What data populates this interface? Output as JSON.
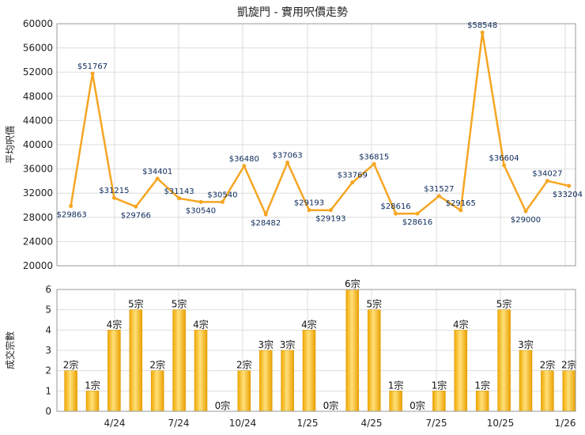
{
  "chart_data": [
    {
      "type": "line",
      "title": "凱旋門 - 實用呎價走勢",
      "ylabel": "平均呎價",
      "xlabel": "",
      "ylim": [
        20000,
        60000
      ],
      "yticks": [
        "20000",
        "24000",
        "28000",
        "32000",
        "36000",
        "40000",
        "44000",
        "48000",
        "52000",
        "56000",
        "60000"
      ],
      "grid": true,
      "line_color": "#f5a623",
      "series": [
        {
          "values": [
            29863,
            51767,
            31215,
            29766,
            34401,
            31143,
            30540,
            30540,
            36480,
            28482,
            37063,
            29193,
            29193,
            33769,
            36815,
            28616,
            28616,
            31527,
            29165,
            58548,
            36604,
            29000,
            34027,
            33204
          ],
          "labels": [
            "$29863",
            "$51767",
            "$31215",
            "$29766",
            "$34401",
            "$31143",
            "$30540",
            "$30540",
            "$36480",
            "$28482",
            "$37063",
            "$29193",
            "$29193",
            "$33769",
            "$36815",
            "$28616",
            "$28616",
            "$31527",
            "$29165",
            "$58548",
            "$36604",
            "$29000",
            "$34027",
            "$33204"
          ]
        }
      ]
    },
    {
      "type": "bar",
      "ylabel": "成交宗數",
      "xlabel": "",
      "ylim": [
        0,
        6
      ],
      "yticks": [
        "0",
        "1",
        "2",
        "3",
        "4",
        "5",
        "6"
      ],
      "grid": true,
      "bar_color": "#f2b632",
      "x_tick_labels": [
        "4/24",
        "7/24",
        "10/24",
        "1/25",
        "4/25",
        "7/25",
        "10/25",
        "1/26"
      ],
      "series": [
        {
          "values": [
            2,
            1,
            4,
            5,
            2,
            5,
            4,
            0,
            2,
            3,
            3,
            4,
            0,
            6,
            5,
            1,
            0,
            1,
            4,
            1,
            5,
            3,
            2,
            2
          ],
          "labels": [
            "2宗",
            "1宗",
            "4宗",
            "5宗",
            "2宗",
            "5宗",
            "4宗",
            "0宗",
            "2宗",
            "3宗",
            "3宗",
            "4宗",
            "0宗",
            "6宗",
            "5宗",
            "1宗",
            "0宗",
            "1宗",
            "4宗",
            "1宗",
            "5宗",
            "3宗",
            "2宗",
            "2宗"
          ]
        }
      ]
    }
  ]
}
